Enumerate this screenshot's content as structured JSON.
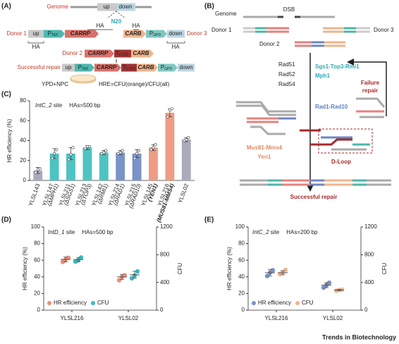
{
  "panel_labels": [
    "(A)",
    "(B)",
    "(C)",
    "(D)",
    "(E)"
  ],
  "diagram_a": {
    "genome": "Genome",
    "up": "up",
    "down": "down",
    "n20": "N20",
    "ha": "HA",
    "donor_1": "Donor 1",
    "donor_2": "Donor 2",
    "donor_3": "Donor 3",
    "p_tef": {
      "main": "P",
      "sub": "TEF"
    },
    "carrp": "CARRP",
    "carb": "CARB",
    "p_gpd": {
      "main": "P",
      "sub": "GPD"
    },
    "t_cyc1": {
      "main": "T",
      "sub": "CYC1"
    },
    "successful_repair": "Successful repair",
    "medium": "YPD+NPC",
    "hre": "HRE=CFU(orange)/CFU(all)"
  },
  "diagram_b": {
    "genome": "Genome",
    "dsb": "DSB",
    "donor_1": "Donor 1",
    "donor_3": "Donor 3",
    "donor_2": "Donor 2",
    "rad": [
      "Rad51",
      "Rad52",
      "Rad54"
    ],
    "sgs1": "Sgs1-Top3-Rmi1",
    "mph1": "Mph1",
    "failure": [
      "Failure",
      "repair"
    ],
    "rad1": "Rad1-Rad10",
    "mus81": "Mus81-Mms4",
    "yen1": "Yen1",
    "dloop": "D-Loop",
    "successful_repair": "Successful repair"
  },
  "chart_data": [
    {
      "type": "bar",
      "ylabel": "HR efficiency (%)",
      "annotations": [
        "IntC_2",
        " site",
        "HAs=500 bp"
      ],
      "categories": [
        "YLSL143",
        "YLSL147",
        "YLSL211",
        "YLSL213",
        "YLSL142",
        "YLSL214",
        "YLSL215",
        "YLSL145",
        "YLSL216",
        "YLSL02"
      ],
      "genotypes": [
        null,
        "(ΔMPH1)",
        "(ΔSGS1)",
        "(ΔTOP3)",
        "(ΔRMI1)",
        "(ΔRAD1)",
        "(ΔRAD10)",
        "(YEN1)",
        "(MUS81-MMS4)",
        null
      ],
      "values": [
        10,
        27,
        27,
        33,
        28,
        28,
        27,
        33,
        68,
        41
      ],
      "errors": [
        3,
        5,
        6,
        2,
        2,
        2,
        4,
        3,
        4,
        2
      ],
      "points": [
        [
          8,
          11,
          12
        ],
        [
          22,
          27,
          31
        ],
        [
          21,
          26,
          33
        ],
        [
          32,
          34,
          34
        ],
        [
          27,
          28,
          30
        ],
        [
          27,
          28,
          30
        ],
        [
          22,
          27,
          30
        ],
        [
          31,
          33,
          36
        ],
        [
          64,
          71,
          72
        ],
        [
          40,
          41,
          43
        ]
      ],
      "colors": [
        "#a9abbd",
        "#4ec3c2",
        "#4ec3c2",
        "#4ec3c2",
        "#4ec3c2",
        "#7a93c8",
        "#7a93c8",
        "#ee9d84",
        "#ee9d84",
        "#a9abbd"
      ],
      "ylim": [
        0,
        80
      ],
      "yticks": [
        0,
        20,
        40,
        60,
        80
      ]
    },
    {
      "type": "dot",
      "ylabel": "HR efficiency (%)",
      "y2label": "CFU",
      "annotations": [
        "IntD_1",
        " site",
        "HAs=500 bp"
      ],
      "categories": [
        "YLSL216",
        "YLSL02"
      ],
      "legend": "lower left",
      "series": [
        {
          "name": "HR efficiency",
          "color": "#e9907b",
          "values": [
            61,
            40
          ],
          "errors": [
            3,
            3
          ],
          "points": [
            [
              58,
              61,
              63
            ],
            [
              36,
              40,
              42
            ]
          ]
        },
        {
          "name": "CFU",
          "color": "#3bb9bd",
          "axis": "y2",
          "values": [
            730,
            510
          ],
          "errors": [
            30,
            50
          ],
          "points": [
            [
              700,
              720,
              760
            ],
            [
              460,
              500,
              560
            ]
          ]
        }
      ],
      "ylim": [
        0,
        100
      ],
      "yticks": [
        0,
        20,
        40,
        60,
        80,
        100
      ],
      "y2lim": [
        0,
        1200
      ],
      "y2ticks": [
        0,
        400,
        800,
        1200
      ]
    },
    {
      "type": "dot",
      "ylabel": "HR efficiency (%)",
      "y2label": "CFU",
      "annotations": [
        "IntC_2",
        " site",
        "HAs=200 bp"
      ],
      "categories": [
        "YLSL216",
        "YLSL02"
      ],
      "legend": "lower left",
      "series": [
        {
          "name": "HR efficiency",
          "color": "#7c93c5",
          "values": [
            45,
            30
          ],
          "errors": [
            4,
            3
          ],
          "points": [
            [
              41,
              45,
              48
            ],
            [
              27,
              30,
              33
            ]
          ]
        },
        {
          "name": "CFU",
          "color": "#f0b48c",
          "axis": "y2",
          "values": [
            540,
            290
          ],
          "errors": [
            30,
            8
          ],
          "points": [
            [
              520,
              540,
              580
            ],
            [
              280,
              290,
              295
            ]
          ]
        }
      ],
      "ylim": [
        0,
        100
      ],
      "yticks": [
        0,
        20,
        40,
        60,
        80,
        100
      ],
      "y2lim": [
        0,
        1200
      ],
      "y2ticks": [
        0,
        400,
        800,
        1200
      ]
    }
  ],
  "footer": "Trends in Biotechnology"
}
